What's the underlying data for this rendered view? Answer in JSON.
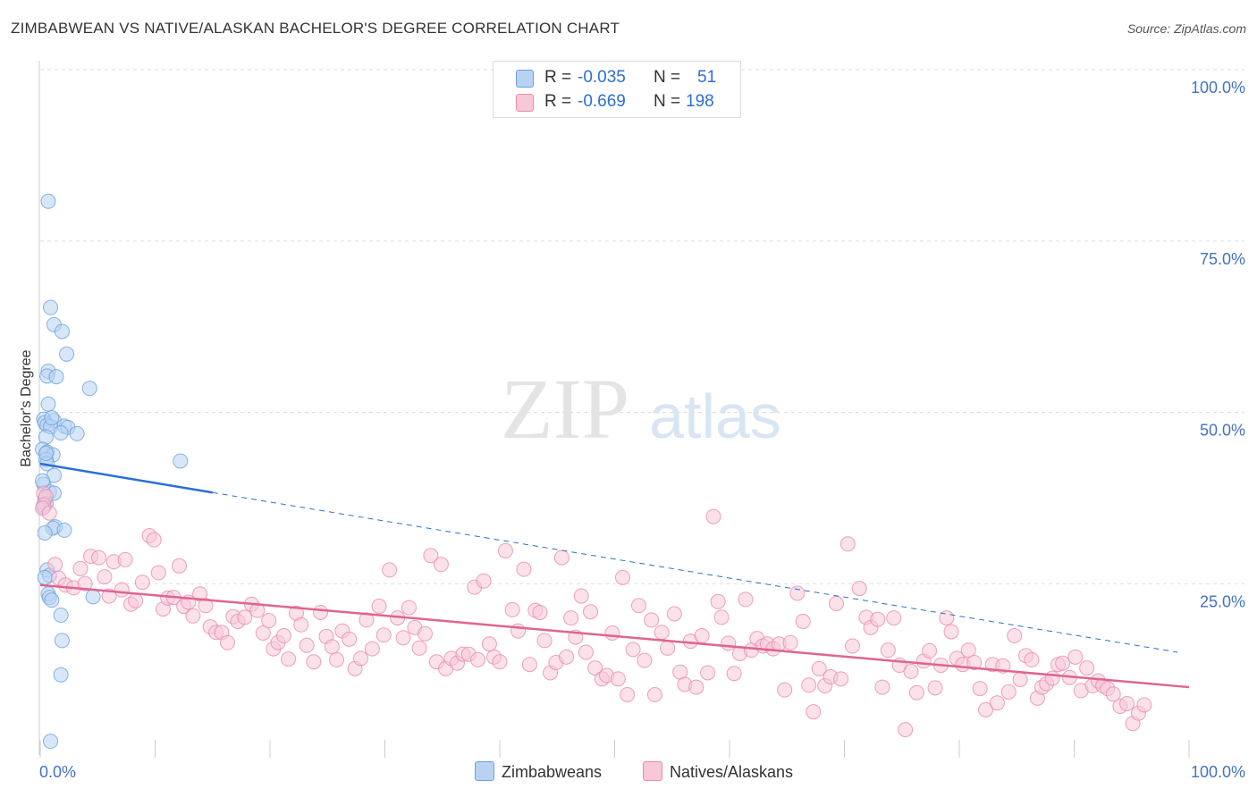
{
  "title": "ZIMBABWEAN VS NATIVE/ALASKAN BACHELOR'S DEGREE CORRELATION CHART",
  "source": "Source: ZipAtlas.com",
  "watermark": {
    "zip": "ZIP",
    "atlas": "atlas"
  },
  "colors": {
    "blue_fill": "#b8d3f2",
    "blue_stroke": "#6c9fe0",
    "blue_line": "#2c6fd1",
    "pink_fill": "#f8c8d8",
    "pink_stroke": "#e98aab",
    "pink_line": "#e0648f",
    "axis_text": "#4472c4",
    "grid": "#dddddd"
  },
  "legend": {
    "rows": [
      {
        "r_label": "R =",
        "r_value": "-0.035",
        "n_label": "N =",
        "n_value": "51",
        "series": "Zimbabweans"
      },
      {
        "r_label": "R =",
        "r_value": "-0.669",
        "n_label": "N =",
        "n_value": "198",
        "series": "Natives/Alaskans"
      }
    ]
  },
  "chart_data": {
    "type": "scatter",
    "xlabel": "",
    "ylabel": "Bachelor's Degree",
    "xlim": [
      0,
      100
    ],
    "ylim": [
      0,
      100
    ],
    "x_tick_labels": [
      "0.0%",
      "100.0%"
    ],
    "y_ticks": [
      25,
      50,
      75,
      100
    ],
    "y_tick_labels": [
      "25.0%",
      "50.0%",
      "75.0%",
      "100.0%"
    ],
    "grid": true,
    "series": [
      {
        "name": "Zimbabweans",
        "color": "blue",
        "trend": {
          "x0": 0,
          "y0": 42.5,
          "x_solid_end": 15,
          "y_solid_end": 38.3,
          "x1": 99,
          "y1": 15.0
        },
        "points": [
          [
            0.7,
            80.8
          ],
          [
            0.9,
            65.3
          ],
          [
            1.2,
            62.8
          ],
          [
            1.9,
            61.8
          ],
          [
            2.3,
            58.5
          ],
          [
            0.7,
            56.0
          ],
          [
            0.6,
            55.3
          ],
          [
            1.4,
            55.2
          ],
          [
            4.3,
            53.5
          ],
          [
            0.7,
            51.2
          ],
          [
            0.3,
            49.0
          ],
          [
            1.2,
            48.8
          ],
          [
            0.4,
            48.5
          ],
          [
            0.6,
            48.1
          ],
          [
            0.9,
            47.9
          ],
          [
            2.1,
            48.0
          ],
          [
            2.4,
            47.8
          ],
          [
            1.8,
            47.0
          ],
          [
            3.2,
            46.9
          ],
          [
            0.5,
            46.4
          ],
          [
            0.2,
            44.6
          ],
          [
            0.6,
            44.2
          ],
          [
            1.1,
            43.8
          ],
          [
            0.5,
            43.1
          ],
          [
            12.2,
            42.9
          ],
          [
            0.6,
            42.5
          ],
          [
            1.2,
            40.8
          ],
          [
            0.3,
            39.5
          ],
          [
            0.8,
            38.4
          ],
          [
            1.2,
            38.2
          ],
          [
            0.4,
            37.3
          ],
          [
            0.5,
            36.7
          ],
          [
            0.3,
            36.2
          ],
          [
            1.3,
            33.3
          ],
          [
            1.1,
            33.1
          ],
          [
            2.1,
            32.8
          ],
          [
            0.4,
            32.4
          ],
          [
            0.6,
            27.0
          ],
          [
            0.8,
            26.2
          ],
          [
            0.4,
            25.9
          ],
          [
            4.6,
            23.1
          ],
          [
            0.7,
            23.5
          ],
          [
            0.8,
            23.0
          ],
          [
            1.0,
            22.6
          ],
          [
            1.8,
            20.4
          ],
          [
            1.9,
            16.7
          ],
          [
            1.8,
            11.7
          ],
          [
            0.9,
            2.0
          ],
          [
            0.5,
            44.0
          ],
          [
            1.0,
            49.2
          ],
          [
            0.2,
            40.0
          ]
        ]
      },
      {
        "name": "Natives/Alaskans",
        "color": "pink",
        "trend": {
          "x0": 0,
          "y0": 24.8,
          "x1": 100,
          "y1": 9.9
        },
        "points": [
          [
            0.3,
            38.2
          ],
          [
            0.5,
            37.7
          ],
          [
            0.3,
            36.5
          ],
          [
            0.2,
            36.0
          ],
          [
            0.8,
            35.3
          ],
          [
            1.3,
            27.8
          ],
          [
            1.6,
            25.8
          ],
          [
            2.2,
            24.8
          ],
          [
            2.9,
            24.4
          ],
          [
            3.5,
            27.2
          ],
          [
            3.9,
            25.0
          ],
          [
            4.4,
            29.0
          ],
          [
            5.1,
            28.8
          ],
          [
            5.6,
            26.0
          ],
          [
            6.0,
            23.2
          ],
          [
            6.4,
            28.2
          ],
          [
            7.1,
            24.1
          ],
          [
            7.4,
            28.5
          ],
          [
            7.9,
            22.0
          ],
          [
            8.3,
            22.5
          ],
          [
            8.9,
            25.2
          ],
          [
            9.5,
            32.0
          ],
          [
            9.9,
            31.4
          ],
          [
            10.3,
            26.6
          ],
          [
            10.7,
            21.3
          ],
          [
            11.1,
            22.9
          ],
          [
            11.6,
            23.0
          ],
          [
            12.1,
            27.6
          ],
          [
            12.5,
            21.7
          ],
          [
            12.9,
            22.3
          ],
          [
            13.3,
            20.3
          ],
          [
            13.9,
            23.5
          ],
          [
            14.4,
            21.8
          ],
          [
            14.8,
            18.7
          ],
          [
            15.3,
            17.9
          ],
          [
            15.8,
            17.9
          ],
          [
            16.3,
            16.4
          ],
          [
            16.8,
            20.2
          ],
          [
            17.2,
            19.5
          ],
          [
            17.8,
            20.1
          ],
          [
            18.4,
            22.0
          ],
          [
            18.9,
            21.1
          ],
          [
            19.4,
            17.8
          ],
          [
            19.9,
            19.6
          ],
          [
            20.3,
            15.5
          ],
          [
            20.7,
            16.4
          ],
          [
            21.2,
            17.4
          ],
          [
            21.6,
            14.0
          ],
          [
            22.3,
            20.7
          ],
          [
            22.7,
            19.0
          ],
          [
            23.2,
            16.0
          ],
          [
            23.8,
            13.6
          ],
          [
            24.4,
            20.8
          ],
          [
            24.9,
            17.3
          ],
          [
            25.4,
            15.8
          ],
          [
            25.8,
            13.9
          ],
          [
            26.3,
            18.1
          ],
          [
            26.9,
            16.9
          ],
          [
            27.4,
            12.6
          ],
          [
            27.9,
            14.1
          ],
          [
            28.4,
            19.7
          ],
          [
            28.9,
            15.5
          ],
          [
            29.5,
            21.7
          ],
          [
            29.9,
            17.5
          ],
          [
            30.4,
            27.0
          ],
          [
            31.1,
            20.0
          ],
          [
            31.6,
            17.1
          ],
          [
            32.1,
            21.5
          ],
          [
            32.6,
            18.6
          ],
          [
            33.0,
            15.6
          ],
          [
            33.5,
            17.7
          ],
          [
            34.0,
            29.1
          ],
          [
            34.5,
            13.6
          ],
          [
            34.9,
            27.8
          ],
          [
            35.3,
            12.6
          ],
          [
            35.8,
            14.1
          ],
          [
            36.3,
            13.4
          ],
          [
            36.8,
            14.7
          ],
          [
            37.3,
            14.7
          ],
          [
            37.8,
            24.5
          ],
          [
            38.1,
            13.9
          ],
          [
            38.6,
            25.4
          ],
          [
            39.1,
            16.2
          ],
          [
            39.5,
            14.3
          ],
          [
            40.0,
            13.6
          ],
          [
            40.5,
            29.8
          ],
          [
            41.1,
            21.2
          ],
          [
            41.6,
            18.1
          ],
          [
            42.1,
            27.1
          ],
          [
            42.6,
            13.2
          ],
          [
            43.1,
            21.1
          ],
          [
            43.5,
            20.8
          ],
          [
            43.9,
            16.7
          ],
          [
            44.4,
            12.0
          ],
          [
            44.9,
            13.5
          ],
          [
            45.4,
            28.8
          ],
          [
            45.8,
            14.3
          ],
          [
            46.2,
            20.0
          ],
          [
            46.6,
            17.2
          ],
          [
            47.1,
            23.2
          ],
          [
            47.5,
            15.0
          ],
          [
            47.9,
            20.9
          ],
          [
            48.3,
            12.7
          ],
          [
            48.9,
            11.1
          ],
          [
            49.3,
            11.6
          ],
          [
            49.8,
            17.8
          ],
          [
            50.3,
            11.1
          ],
          [
            50.7,
            25.9
          ],
          [
            51.1,
            8.8
          ],
          [
            51.6,
            15.4
          ],
          [
            52.1,
            21.8
          ],
          [
            52.6,
            13.8
          ],
          [
            53.2,
            19.7
          ],
          [
            53.5,
            8.8
          ],
          [
            54.1,
            17.9
          ],
          [
            54.6,
            15.6
          ],
          [
            55.2,
            20.6
          ],
          [
            55.7,
            12.1
          ],
          [
            56.1,
            10.3
          ],
          [
            56.6,
            16.6
          ],
          [
            57.1,
            9.9
          ],
          [
            57.6,
            17.4
          ],
          [
            58.1,
            12.0
          ],
          [
            58.6,
            34.8
          ],
          [
            59.0,
            22.4
          ],
          [
            59.3,
            20.1
          ],
          [
            59.9,
            16.3
          ],
          [
            60.4,
            11.9
          ],
          [
            60.9,
            14.8
          ],
          [
            61.4,
            22.7
          ],
          [
            61.9,
            15.3
          ],
          [
            62.4,
            17.0
          ],
          [
            62.9,
            15.9
          ],
          [
            63.3,
            16.2
          ],
          [
            63.8,
            15.5
          ],
          [
            64.3,
            16.2
          ],
          [
            64.8,
            9.5
          ],
          [
            65.3,
            16.4
          ],
          [
            65.9,
            23.6
          ],
          [
            66.4,
            19.5
          ],
          [
            66.9,
            10.2
          ],
          [
            67.3,
            6.3
          ],
          [
            67.8,
            12.6
          ],
          [
            68.3,
            10.1
          ],
          [
            68.8,
            11.4
          ],
          [
            69.3,
            22.1
          ],
          [
            69.7,
            11.1
          ],
          [
            70.3,
            30.8
          ],
          [
            70.7,
            15.9
          ],
          [
            71.3,
            24.3
          ],
          [
            71.9,
            20.1
          ],
          [
            72.3,
            18.6
          ],
          [
            72.9,
            19.8
          ],
          [
            73.3,
            9.9
          ],
          [
            73.8,
            15.3
          ],
          [
            74.3,
            20.0
          ],
          [
            74.8,
            13.1
          ],
          [
            75.3,
            3.7
          ],
          [
            75.8,
            12.2
          ],
          [
            76.3,
            9.1
          ],
          [
            76.9,
            13.7
          ],
          [
            77.4,
            15.2
          ],
          [
            77.9,
            9.8
          ],
          [
            78.4,
            13.1
          ],
          [
            78.9,
            20.0
          ],
          [
            79.3,
            18.0
          ],
          [
            79.8,
            14.1
          ],
          [
            80.3,
            13.2
          ],
          [
            80.8,
            15.3
          ],
          [
            81.3,
            13.5
          ],
          [
            81.8,
            9.7
          ],
          [
            82.3,
            6.6
          ],
          [
            82.9,
            13.2
          ],
          [
            83.3,
            7.6
          ],
          [
            83.8,
            13.0
          ],
          [
            84.3,
            9.2
          ],
          [
            84.8,
            17.4
          ],
          [
            85.3,
            11.0
          ],
          [
            85.8,
            14.5
          ],
          [
            86.3,
            13.9
          ],
          [
            86.8,
            8.3
          ],
          [
            87.2,
            9.9
          ],
          [
            87.6,
            10.4
          ],
          [
            88.1,
            11.2
          ],
          [
            88.6,
            13.2
          ],
          [
            89.0,
            13.4
          ],
          [
            89.6,
            11.3
          ],
          [
            90.1,
            14.3
          ],
          [
            90.6,
            9.4
          ],
          [
            91.1,
            12.7
          ],
          [
            91.6,
            10.1
          ],
          [
            92.1,
            10.8
          ],
          [
            92.5,
            10.1
          ],
          [
            92.9,
            9.7
          ],
          [
            93.4,
            8.9
          ],
          [
            94.0,
            7.1
          ],
          [
            94.6,
            7.5
          ],
          [
            95.1,
            4.6
          ],
          [
            95.6,
            6.1
          ],
          [
            96.1,
            7.3
          ]
        ]
      }
    ]
  }
}
